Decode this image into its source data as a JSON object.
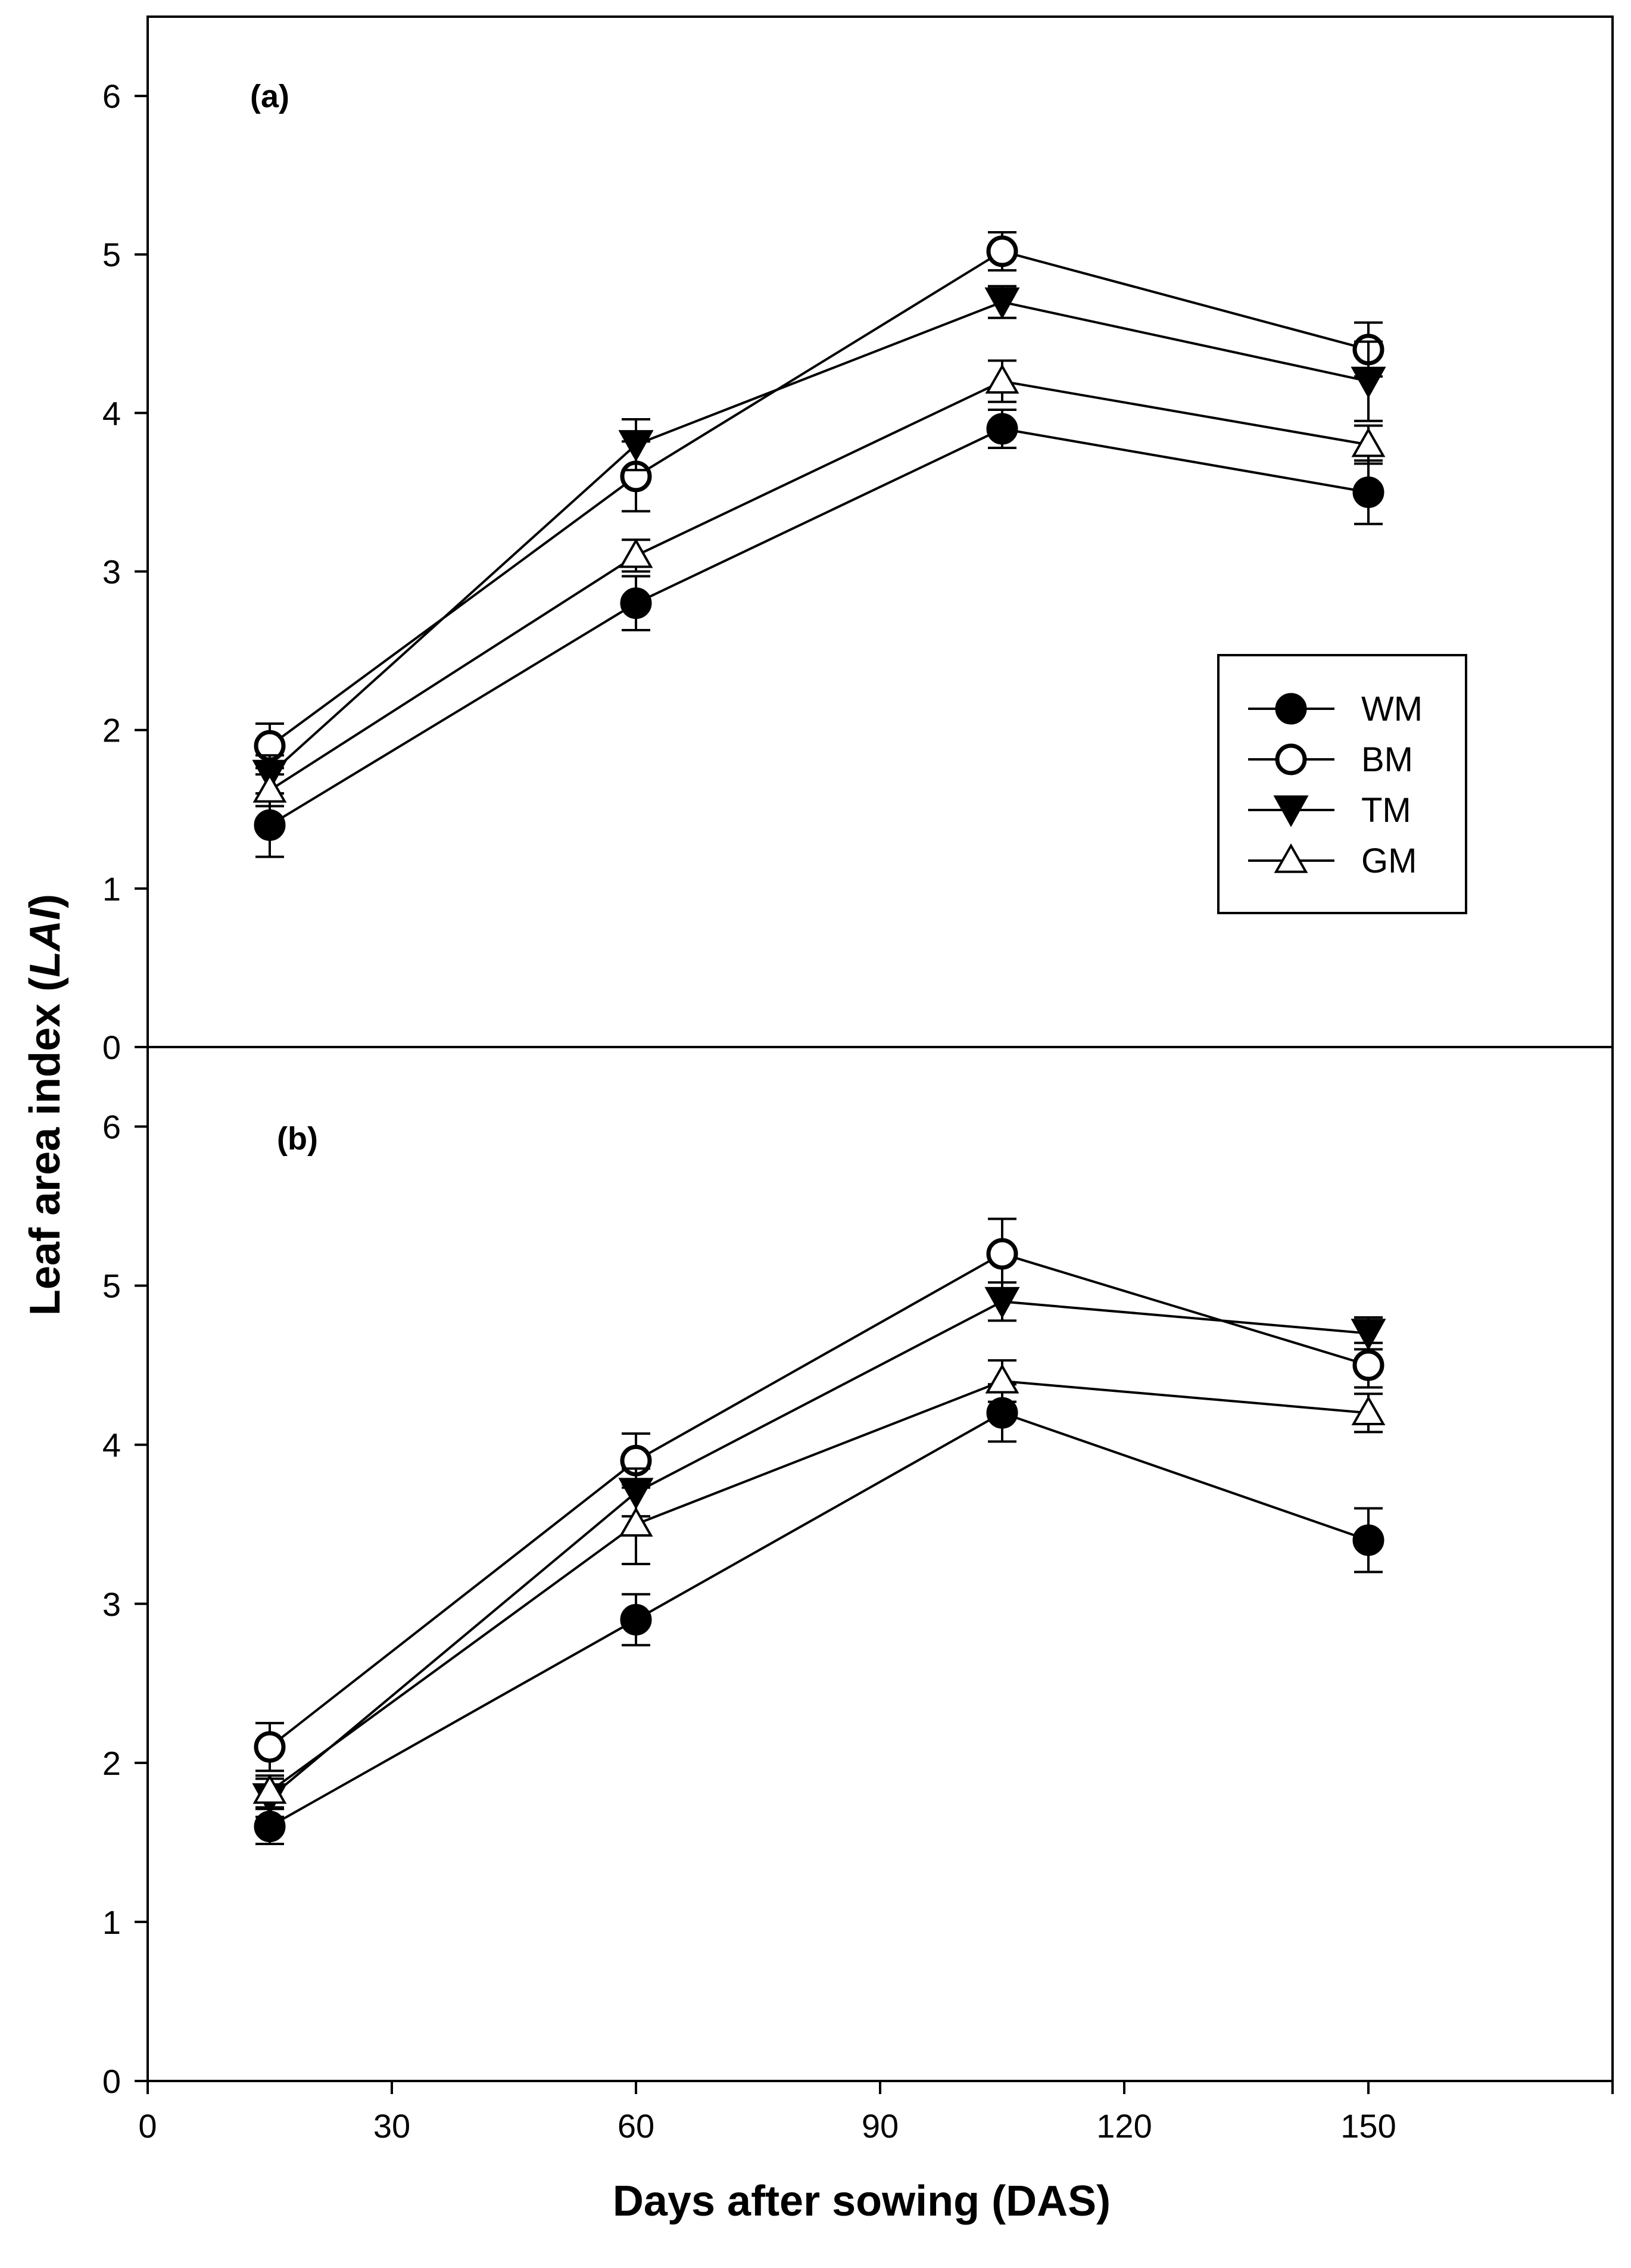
{
  "chart_data": [
    {
      "type": "line",
      "panel": "(a)",
      "x": [
        15,
        60,
        105,
        150
      ],
      "xlim": [
        0,
        180
      ],
      "ylim": [
        0,
        6.5
      ],
      "yticks": [
        0,
        1,
        2,
        3,
        4,
        5,
        6
      ],
      "series": [
        {
          "name": "WM",
          "marker": "circle-filled",
          "values": [
            1.4,
            2.8,
            3.9,
            3.5
          ],
          "errors": [
            0.2,
            0.17,
            0.12,
            0.2
          ]
        },
        {
          "name": "BM",
          "marker": "circle-open",
          "values": [
            1.9,
            3.6,
            5.02,
            4.4
          ],
          "errors": [
            0.14,
            0.22,
            0.12,
            0.17
          ]
        },
        {
          "name": "TM",
          "marker": "triangle-down-filled",
          "values": [
            1.72,
            3.8,
            4.7,
            4.2
          ],
          "errors": [
            0.12,
            0.16,
            0.1,
            0.25
          ]
        },
        {
          "name": "GM",
          "marker": "triangle-up-open",
          "values": [
            1.62,
            3.1,
            4.2,
            3.8
          ],
          "errors": [
            0.1,
            0.1,
            0.13,
            0.12
          ]
        }
      ],
      "legend": {
        "position": "right",
        "entries": [
          "WM",
          "BM",
          "TM",
          "GM"
        ]
      }
    },
    {
      "type": "line",
      "panel": "(b)",
      "x": [
        15,
        60,
        105,
        150
      ],
      "xlim": [
        0,
        180
      ],
      "xticks": [
        0,
        30,
        60,
        90,
        120,
        150
      ],
      "ylim": [
        0,
        6.5
      ],
      "yticks": [
        0,
        1,
        2,
        3,
        4,
        5,
        6
      ],
      "series": [
        {
          "name": "WM",
          "marker": "circle-filled",
          "values": [
            1.6,
            2.9,
            4.2,
            3.4
          ],
          "errors": [
            0.11,
            0.16,
            0.18,
            0.2
          ]
        },
        {
          "name": "BM",
          "marker": "circle-open",
          "values": [
            2.1,
            3.9,
            5.2,
            4.5
          ],
          "errors": [
            0.15,
            0.17,
            0.22,
            0.14
          ]
        },
        {
          "name": "TM",
          "marker": "triangle-down-filled",
          "values": [
            1.78,
            3.7,
            4.9,
            4.7
          ],
          "errors": [
            0.12,
            0.15,
            0.12,
            0.1
          ]
        },
        {
          "name": "GM",
          "marker": "triangle-up-open",
          "values": [
            1.82,
            3.5,
            4.4,
            4.2
          ],
          "errors": [
            0.1,
            0.25,
            0.13,
            0.12
          ]
        }
      ]
    }
  ],
  "labels": {
    "panel_a": "(a)",
    "panel_b": "(b)",
    "ylabel_prefix": "Leaf area index (",
    "ylabel_italic": "LAI",
    "ylabel_suffix": ")",
    "xlabel": "Days after sowing (DAS)"
  }
}
